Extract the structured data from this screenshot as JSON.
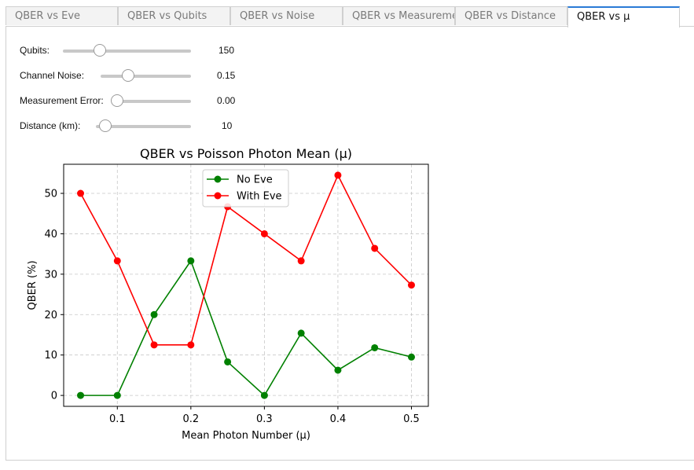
{
  "tabs": [
    {
      "label": "QBER vs Eve",
      "active": false
    },
    {
      "label": "QBER vs Qubits",
      "active": false
    },
    {
      "label": "QBER vs Noise",
      "active": false
    },
    {
      "label": "QBER vs Measurement",
      "active": false
    },
    {
      "label": "QBER vs Distance",
      "active": false
    },
    {
      "label": "QBER vs μ",
      "active": true
    }
  ],
  "controls": {
    "qubits": {
      "label": "Qubits:",
      "value": "150",
      "fraction": 0.29
    },
    "noise": {
      "label": "Channel Noise:",
      "value": "0.15",
      "fraction": 0.3
    },
    "measurement": {
      "label": "Measurement Error:",
      "value": "0.00",
      "fraction": 0.0
    },
    "distance": {
      "label": "Distance (km):",
      "value": "10",
      "fraction": 0.1
    }
  },
  "colors": {
    "no_eve": "#008000",
    "with_eve": "#ff0000",
    "active_tab_accent": "#2a7ad6"
  },
  "chart_data": {
    "type": "line",
    "title": "QBER vs Poisson Photon Mean (μ)",
    "xlabel": "Mean Photon Number (μ)",
    "ylabel": "QBER (%)",
    "x": [
      0.05,
      0.1,
      0.15,
      0.2,
      0.25,
      0.3,
      0.35,
      0.4,
      0.45,
      0.5
    ],
    "xticks": [
      "0.1",
      "0.2",
      "0.3",
      "0.4",
      "0.5"
    ],
    "yticks": [
      "0",
      "10",
      "20",
      "30",
      "40",
      "50"
    ],
    "xlim": [
      0.027,
      0.523
    ],
    "ylim": [
      -2.7,
      57.2
    ],
    "grid": true,
    "legend_position": "top-center",
    "series": [
      {
        "name": "No Eve",
        "color": "#008000",
        "values": [
          0,
          0,
          20,
          33.3,
          8.3,
          0,
          15.4,
          6.25,
          11.8,
          9.5
        ]
      },
      {
        "name": "With Eve",
        "color": "#ff0000",
        "values": [
          50,
          33.3,
          12.5,
          12.5,
          46.7,
          40,
          33.3,
          54.5,
          36.4,
          27.3
        ]
      }
    ]
  }
}
